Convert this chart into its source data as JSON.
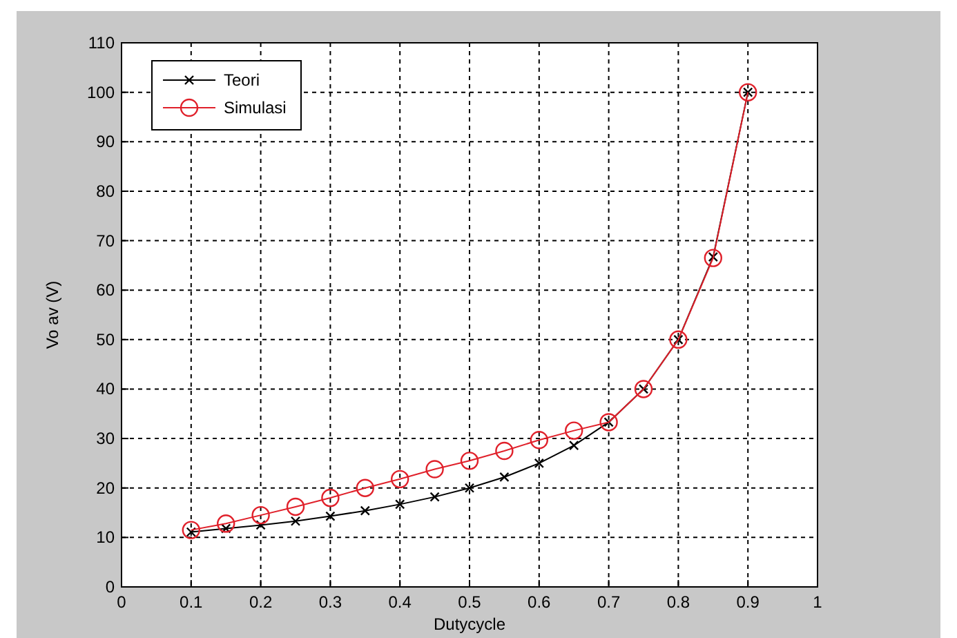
{
  "chart_data": {
    "type": "line",
    "xlabel": "Dutycycle",
    "ylabel": "Vo av (V)",
    "xlim": [
      0,
      1
    ],
    "xticks": [
      0,
      0.1,
      0.2,
      0.3,
      0.4,
      0.5,
      0.6,
      0.7,
      0.8,
      0.9,
      1
    ],
    "ylim": [
      0,
      110
    ],
    "yticks": [
      0,
      10,
      20,
      30,
      40,
      50,
      60,
      70,
      80,
      90,
      100,
      110
    ],
    "grid": true,
    "legend": "top left",
    "series": [
      {
        "name": "Teori",
        "color": "#000000",
        "marker": "cross",
        "x": [
          0.1,
          0.15,
          0.2,
          0.25,
          0.3,
          0.35,
          0.4,
          0.45,
          0.5,
          0.55,
          0.6,
          0.65,
          0.7,
          0.75,
          0.8,
          0.85,
          0.9
        ],
        "values": [
          11.1,
          11.8,
          12.5,
          13.3,
          14.3,
          15.4,
          16.7,
          18.2,
          20,
          22.2,
          25,
          28.6,
          33.3,
          40,
          50,
          66.7,
          100
        ]
      },
      {
        "name": "Simulasi",
        "color": "#e0202a",
        "marker": "circle",
        "x": [
          0.1,
          0.15,
          0.2,
          0.25,
          0.3,
          0.35,
          0.4,
          0.45,
          0.5,
          0.55,
          0.6,
          0.65,
          0.7,
          0.75,
          0.8,
          0.85,
          0.9
        ],
        "values": [
          11.5,
          12.8,
          14.5,
          16.2,
          18,
          20,
          21.8,
          23.8,
          25.5,
          27.5,
          29.7,
          31.6,
          33.3,
          40,
          50,
          66.5,
          100
        ]
      }
    ]
  }
}
